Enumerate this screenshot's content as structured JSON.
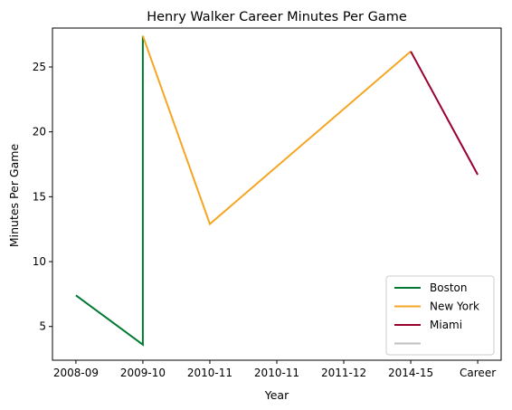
{
  "chart_data": {
    "type": "line",
    "title": "Henry Walker  Career Minutes Per Game",
    "xlabel": "Year",
    "ylabel": "Minutes Per Game",
    "x_tick_labels": [
      "2008-09",
      "2009-10",
      "2010-11",
      "2010-11",
      "2011-12",
      "2014-15",
      "Career"
    ],
    "x_tick_positions": [
      0,
      1,
      2,
      3,
      4,
      5,
      6
    ],
    "xlim": [
      -0.35,
      6.35
    ],
    "ylim": [
      2.4,
      28.0
    ],
    "y_ticks": [
      5,
      10,
      15,
      20,
      25
    ],
    "grid": false,
    "legend_position": "bottom-right",
    "series": [
      {
        "name": "Boston",
        "color": "#007A33",
        "x": [
          0,
          1.0,
          1.0
        ],
        "y": [
          7.4,
          3.6,
          27.4
        ]
      },
      {
        "name": "New York",
        "color": "#F5A623",
        "x": [
          1.0,
          2.0,
          5.0
        ],
        "y": [
          27.4,
          12.9,
          26.2
        ]
      },
      {
        "name": "Miami",
        "color": "#98002E",
        "x": [
          5.0,
          6.0
        ],
        "y": [
          26.2,
          16.7
        ]
      },
      {
        "name": "",
        "color": "#BFBFBF",
        "x": [],
        "y": []
      }
    ]
  }
}
